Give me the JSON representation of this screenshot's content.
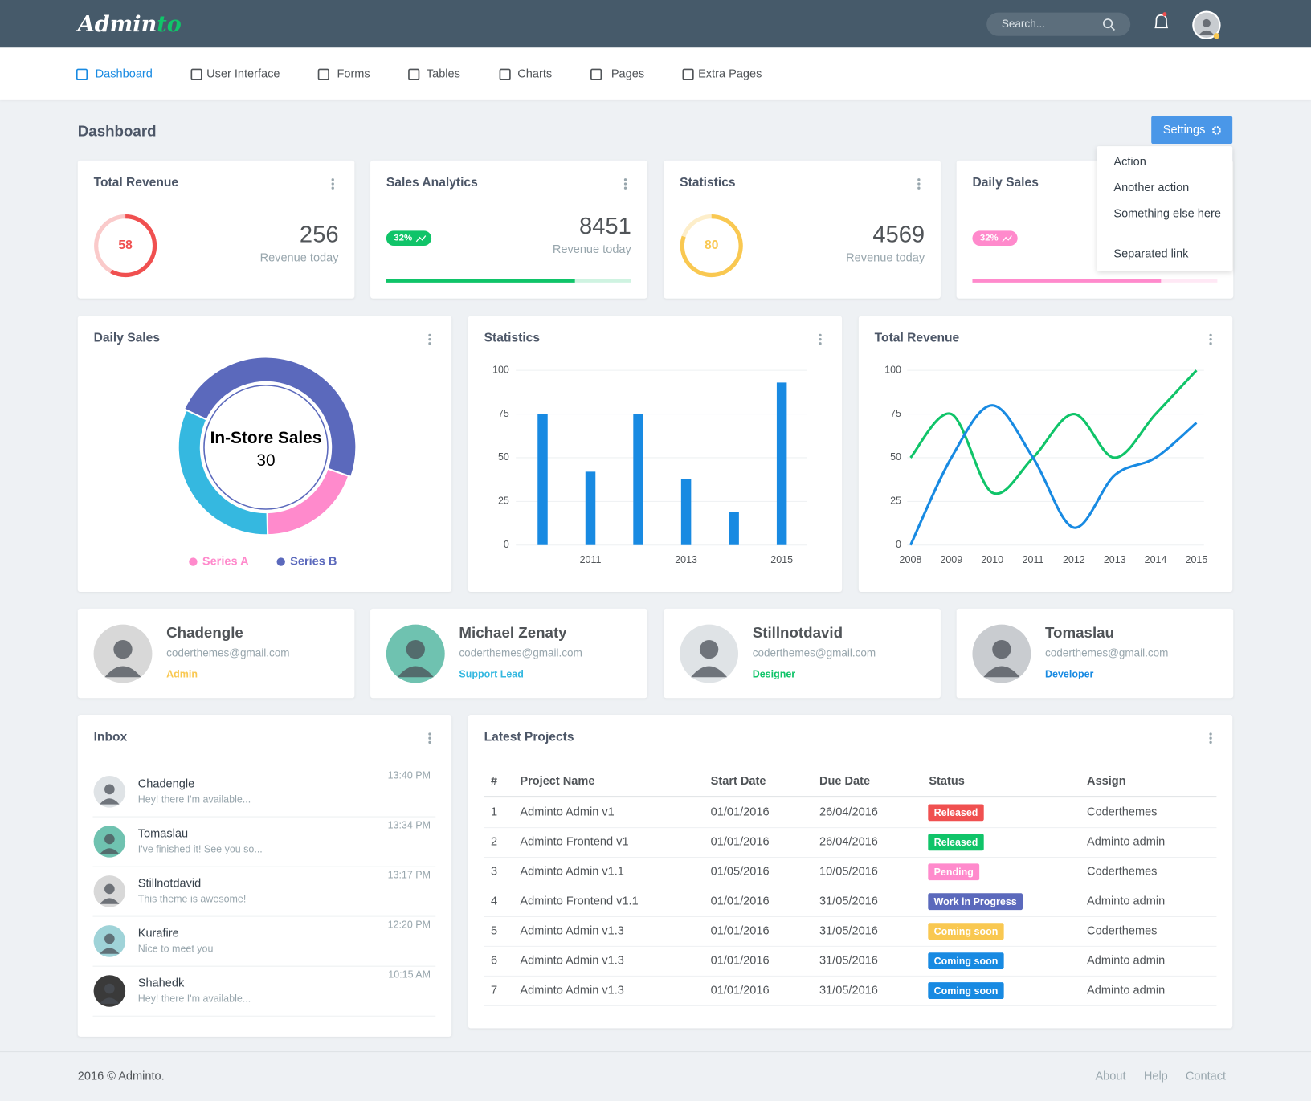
{
  "brand": {
    "main": "Admin",
    "accent": "to"
  },
  "search_placeholder": "Search...",
  "nav": [
    "Dashboard",
    "User Interface",
    "Forms",
    "Tables",
    "Charts",
    "Pages",
    "Extra Pages"
  ],
  "page_title": "Dashboard",
  "settings_button": "Settings",
  "settings_menu": [
    "Action",
    "Another action",
    "Something else here",
    "Separated link"
  ],
  "stat_cards": [
    {
      "title": "Total Revenue",
      "ring": 58,
      "value": 256,
      "caption": "Revenue today",
      "color": "#f05050"
    },
    {
      "title": "Sales Analytics",
      "badge": "32%",
      "value": 8451,
      "caption": "Revenue today",
      "progress": 77,
      "color": "#10c469"
    },
    {
      "title": "Statistics",
      "ring": 80,
      "value": 4569,
      "caption": "Revenue today",
      "color": "#f9c851"
    },
    {
      "title": "Daily Sales",
      "badge": "32%",
      "progress": 77,
      "color": "#ff8acc"
    }
  ],
  "chart_data": [
    {
      "type": "donut",
      "title": "Daily Sales",
      "categories": [
        "In-Store Sales",
        null,
        null
      ],
      "values": [
        30,
        12,
        20
      ],
      "colors": [
        "#5b69bc",
        "#ff8acc",
        "#35b8e0"
      ],
      "legend": [
        {
          "name": "Series A",
          "color": "#ff8acc"
        },
        {
          "name": "Series B",
          "color": "#5b69bc"
        }
      ]
    },
    {
      "type": "bar",
      "title": "Statistics",
      "categories": [
        null,
        "2011",
        null,
        "2013",
        null,
        "2015"
      ],
      "values": [
        75,
        42,
        75,
        38,
        19,
        93
      ],
      "color": "#188ae2",
      "ylim": [
        0,
        100
      ],
      "yticks": [
        0,
        25,
        50,
        75,
        100
      ],
      "grid": true
    },
    {
      "type": "line",
      "title": "Total Revenue",
      "x": [
        2008,
        2009,
        2010,
        2011,
        2012,
        2013,
        2014,
        2015
      ],
      "series": [
        {
          "color": "#10c469",
          "values": [
            50,
            75,
            30,
            50,
            75,
            50,
            75,
            100
          ]
        },
        {
          "color": "#188ae2",
          "values": [
            0,
            50,
            80,
            50,
            10,
            40,
            50,
            70
          ]
        }
      ],
      "xlim": [
        2008,
        2015
      ],
      "xticks": [
        2008,
        2009,
        2010,
        2011,
        2012,
        2013,
        2014,
        2015
      ],
      "ylim": [
        0,
        100
      ],
      "yticks": [
        0,
        25,
        50,
        75,
        100
      ],
      "grid": true
    }
  ],
  "contacts": [
    {
      "name": "Chadengle",
      "email": "coderthemes@gmail.com",
      "role": "Admin",
      "role_color": "#f9c851"
    },
    {
      "name": "Michael Zenaty",
      "email": "coderthemes@gmail.com",
      "role": "Support Lead",
      "role_color": "#35b8e0"
    },
    {
      "name": "Stillnotdavid",
      "email": "coderthemes@gmail.com",
      "role": "Designer",
      "role_color": "#10c469"
    },
    {
      "name": "Tomaslau",
      "email": "coderthemes@gmail.com",
      "role": "Developer",
      "role_color": "#188ae2"
    }
  ],
  "inbox": {
    "title": "Inbox",
    "messages": [
      {
        "name": "Chadengle",
        "text": "Hey! there I'm available...",
        "time": "13:40 PM"
      },
      {
        "name": "Tomaslau",
        "text": "I've finished it! See you so...",
        "time": "13:34 PM"
      },
      {
        "name": "Stillnotdavid",
        "text": "This theme is awesome!",
        "time": "13:17 PM"
      },
      {
        "name": "Kurafire",
        "text": "Nice to meet you",
        "time": "12:20 PM"
      },
      {
        "name": "Shahedk",
        "text": "Hey! there I'm available...",
        "time": "10:15 AM"
      }
    ]
  },
  "projects": {
    "title": "Latest Projects",
    "columns": [
      "#",
      "Project Name",
      "Start Date",
      "Due Date",
      "Status",
      "Assign"
    ],
    "rows": [
      [
        1,
        "Adminto Admin v1",
        "01/01/2016",
        "26/04/2016",
        "Released",
        "Coderthemes"
      ],
      [
        2,
        "Adminto Frontend v1",
        "01/01/2016",
        "26/04/2016",
        "Released",
        "Adminto admin"
      ],
      [
        3,
        "Adminto Admin v1.1",
        "01/05/2016",
        "10/05/2016",
        "Pending",
        "Coderthemes"
      ],
      [
        4,
        "Adminto Frontend v1.1",
        "01/01/2016",
        "31/05/2016",
        "Work in Progress",
        "Adminto admin"
      ],
      [
        5,
        "Adminto Admin v1.3",
        "01/01/2016",
        "31/05/2016",
        "Coming soon",
        "Coderthemes"
      ],
      [
        6,
        "Adminto Admin v1.3",
        "01/01/2016",
        "31/05/2016",
        "Coming soon",
        "Adminto admin"
      ],
      [
        7,
        "Adminto Admin v1.3",
        "01/01/2016",
        "31/05/2016",
        "Coming soon",
        "Adminto admin"
      ]
    ],
    "status_colors": [
      "#f05050",
      "#10c469",
      "#ff8acc",
      "#5b69bc",
      "#f9c851",
      "#188ae2",
      "#188ae2"
    ]
  },
  "footer": {
    "copyright": "2016 © Adminto.",
    "links": [
      "About",
      "Help",
      "Contact"
    ]
  }
}
